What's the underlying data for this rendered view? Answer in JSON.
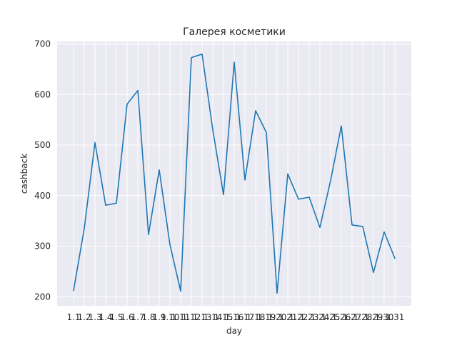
{
  "chart_data": {
    "type": "line",
    "title": "Галерея косметики",
    "xlabel": "day",
    "ylabel": "cashback",
    "categories": [
      "1.1",
      "1.2",
      "1.3",
      "1.4",
      "1.5",
      "1.6",
      "1.7",
      "1.8",
      "1.9",
      "1.10",
      "1.11",
      "1.12",
      "1.13",
      "1.14",
      "1.15",
      "1.16",
      "1.17",
      "1.18",
      "1.19",
      "1.20",
      "1.21",
      "1.22",
      "1.23",
      "1.24",
      "1.25",
      "1.26",
      "1.27",
      "1.28",
      "1.29",
      "1.30",
      "1.31"
    ],
    "series": [
      {
        "values": [
          212,
          335,
          505,
          381,
          385,
          581,
          608,
          323,
          451,
          303,
          211,
          673,
          680,
          530,
          402,
          664,
          431,
          568,
          525,
          207,
          443,
          393,
          397,
          337,
          430,
          538,
          342,
          339,
          248,
          328,
          276
        ],
        "color": "#1f77b4"
      }
    ],
    "ylim": [
      182,
      705
    ],
    "yticks": [
      200,
      300,
      400,
      500,
      600,
      700
    ],
    "grid": true,
    "background": "#eaeaf2"
  }
}
